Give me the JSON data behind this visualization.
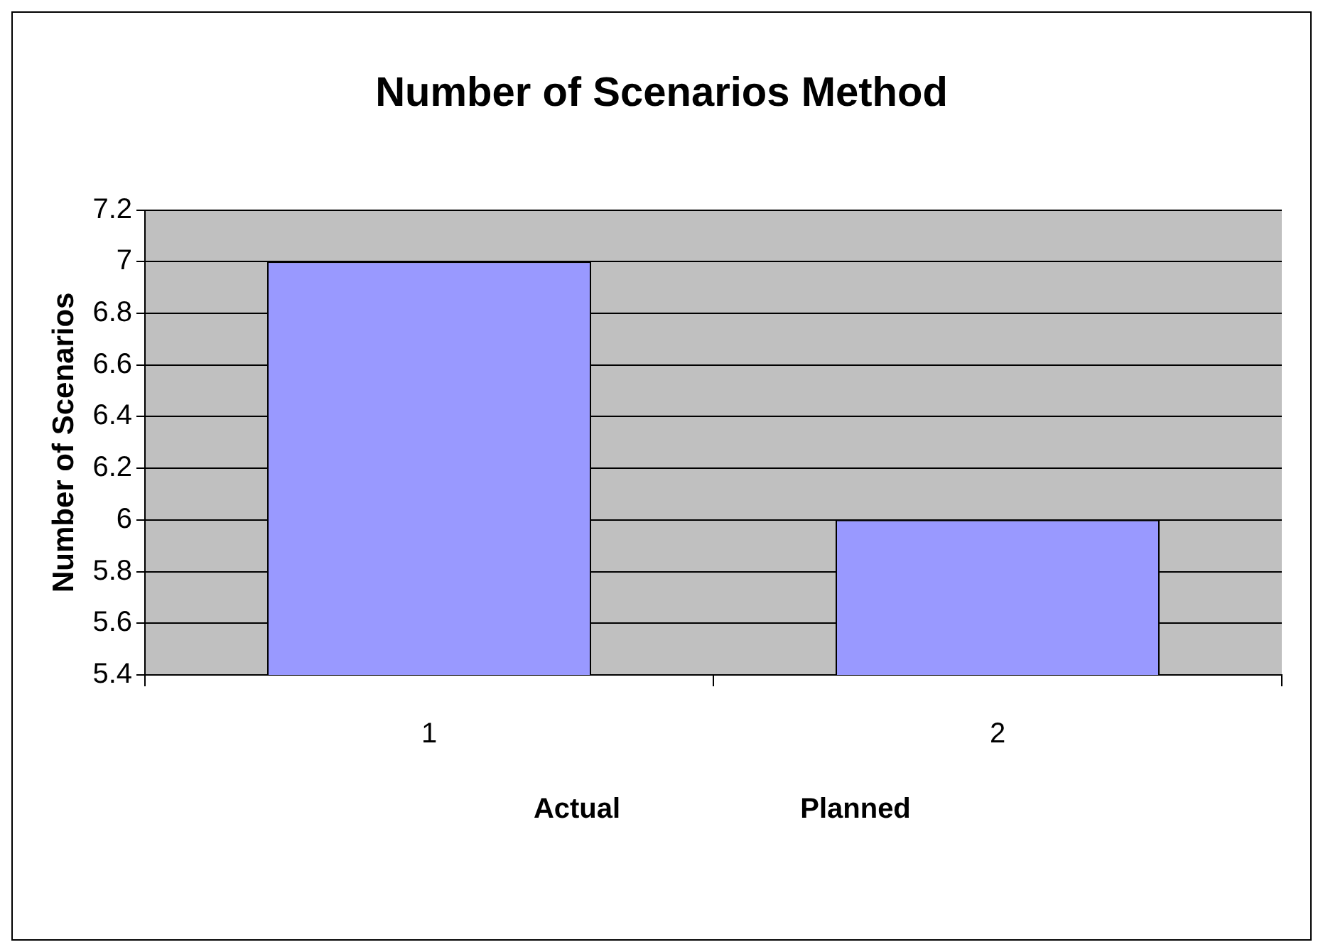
{
  "chart_data": {
    "type": "bar",
    "title": "Number of Scenarios Method",
    "ylabel": "Number of Scenarios",
    "categories": [
      "1",
      "2"
    ],
    "values": [
      7,
      6
    ],
    "color": "#9999ff",
    "ylim": [
      5.4,
      7.2
    ],
    "yticks": [
      5.4,
      5.6,
      5.8,
      6,
      6.2,
      6.4,
      6.6,
      6.8,
      7,
      7.2
    ],
    "grid": "y",
    "legend": false,
    "annotations": [
      "Actual",
      "Planned"
    ]
  }
}
